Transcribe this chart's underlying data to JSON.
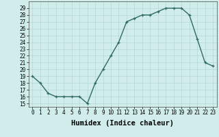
{
  "x": [
    0,
    1,
    2,
    3,
    4,
    5,
    6,
    7,
    8,
    9,
    10,
    11,
    12,
    13,
    14,
    15,
    16,
    17,
    18,
    19,
    20,
    21,
    22,
    23
  ],
  "y": [
    19,
    18,
    16.5,
    16,
    16,
    16,
    16,
    15,
    18,
    20,
    22,
    24,
    27,
    27.5,
    28,
    28,
    28.5,
    29,
    29,
    29,
    28,
    24.5,
    21,
    20.5
  ],
  "line_color": "#2e6b5e",
  "marker_color": "#2e6b5e",
  "bg_color": "#d0eceb",
  "grid_color": "#b2d8d4",
  "xlabel": "Humidex (Indice chaleur)",
  "ylim": [
    14.5,
    30
  ],
  "xlim": [
    -0.5,
    23.5
  ],
  "yticks": [
    15,
    16,
    17,
    18,
    19,
    20,
    21,
    22,
    23,
    24,
    25,
    26,
    27,
    28,
    29
  ],
  "xticks": [
    0,
    1,
    2,
    3,
    4,
    5,
    6,
    7,
    8,
    9,
    10,
    11,
    12,
    13,
    14,
    15,
    16,
    17,
    18,
    19,
    20,
    21,
    22,
    23
  ],
  "xlabel_fontsize": 7.5,
  "tick_fontsize": 5.5,
  "marker_size": 2.5,
  "line_width": 1.0
}
